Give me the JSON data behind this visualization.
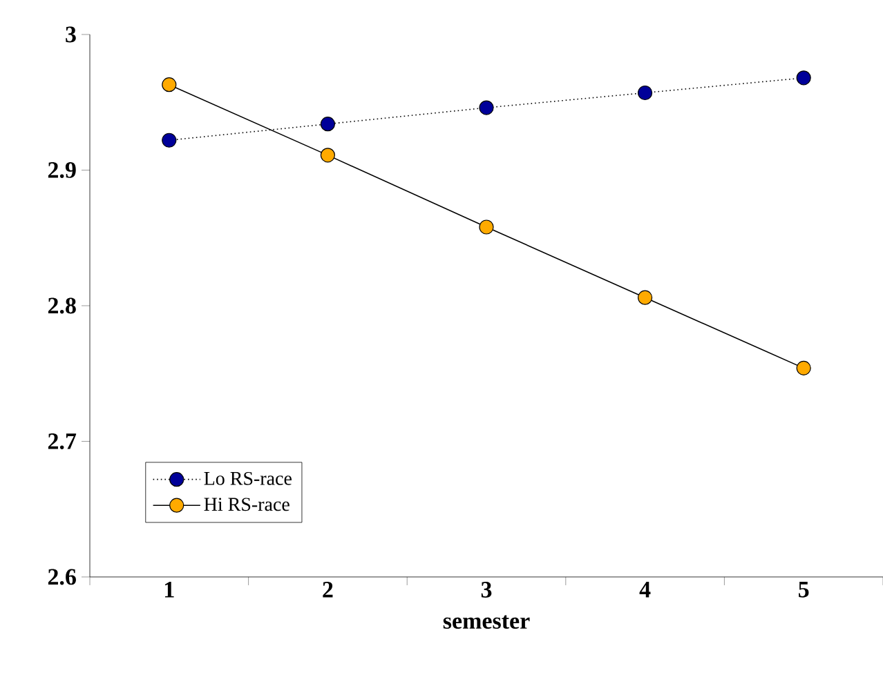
{
  "chart_data": {
    "type": "line",
    "xlabel": "semester",
    "categories": [
      "1",
      "2",
      "3",
      "4",
      "5"
    ],
    "series": [
      {
        "name": "Lo RS-race",
        "color": "#000099",
        "line_style": "dotted",
        "values": [
          2.922,
          2.934,
          2.946,
          2.957,
          2.968
        ]
      },
      {
        "name": "Hi RS-race",
        "color": "#ffaa00",
        "line_style": "solid",
        "values": [
          2.963,
          2.911,
          2.858,
          2.806,
          2.754
        ]
      }
    ],
    "ylim": [
      2.6,
      3.0
    ],
    "yticks": [
      {
        "value": 2.6,
        "label": "2.6"
      },
      {
        "value": 2.7,
        "label": "2.7"
      },
      {
        "value": 2.8,
        "label": "2.8"
      },
      {
        "value": 2.9,
        "label": "2.9"
      },
      {
        "value": 3.0,
        "label": "3"
      }
    ],
    "marker": "circle",
    "legend": "bottom left",
    "grid": false
  }
}
